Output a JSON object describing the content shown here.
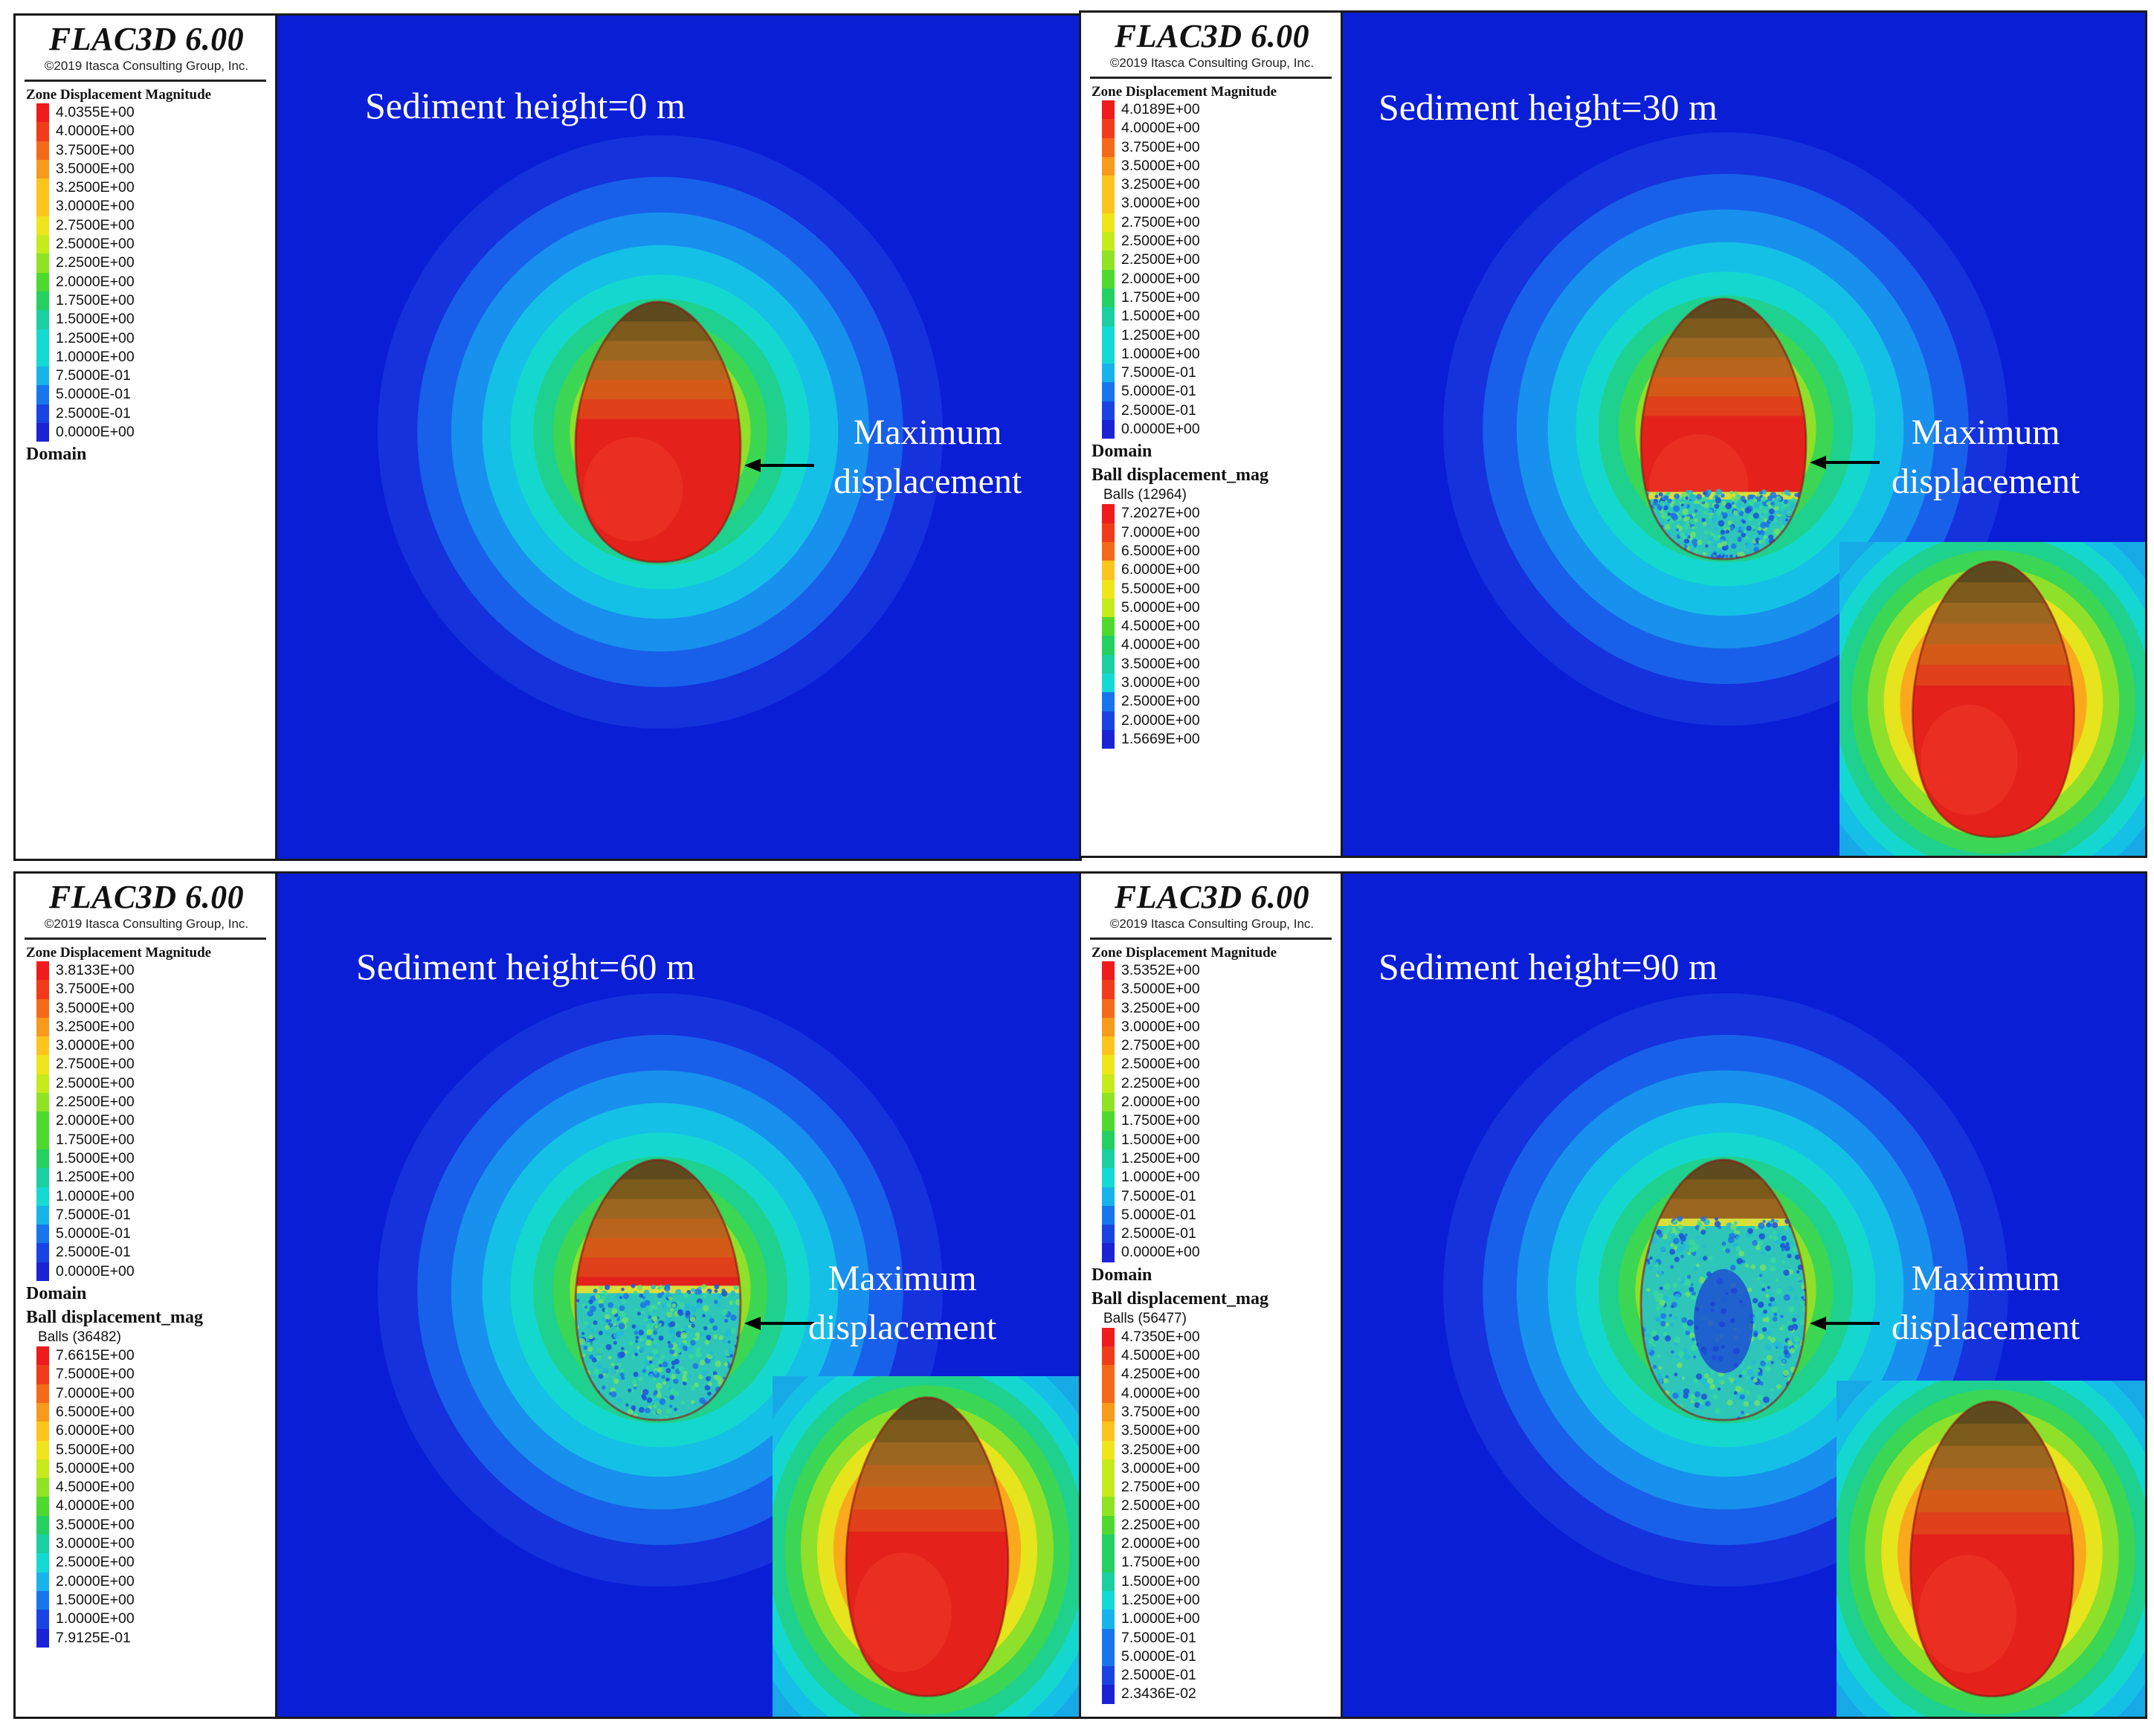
{
  "app_title": "FLAC3D 6.00",
  "copyright": "©2019 Itasca Consulting Group, Inc.",
  "zone_heading": "Zone Displacement Magnitude",
  "domain_label": "Domain",
  "ball_heading": "Ball displacement_mag",
  "annotation_line1": "Maximum",
  "annotation_line2": "displacement",
  "colors": {
    "background_blue": "#0a1ed6",
    "scale": [
      "#ee1c1c",
      "#f03c1a",
      "#f56a1a",
      "#f89a1b",
      "#fbc51e",
      "#f0e41c",
      "#c6ea1c",
      "#8fe323",
      "#4fd92f",
      "#25d063",
      "#1ccfa0",
      "#16d9d4",
      "#17b4ec",
      "#1876ed",
      "#1a44e2",
      "#1b23d4"
    ]
  },
  "panels": [
    {
      "label": "Sediment height=0 m",
      "zone_values": [
        "4.0355E+00",
        "4.0000E+00",
        "3.7500E+00",
        "3.5000E+00",
        "3.2500E+00",
        "3.0000E+00",
        "2.7500E+00",
        "2.5000E+00",
        "2.2500E+00",
        "2.0000E+00",
        "1.7500E+00",
        "1.5000E+00",
        "1.2500E+00",
        "1.0000E+00",
        "7.5000E-01",
        "5.0000E-01",
        "2.5000E-01",
        "0.0000E+00"
      ],
      "balls": null,
      "ball_values": [],
      "sediment_fraction": 0
    },
    {
      "label": "Sediment height=30 m",
      "zone_values": [
        "4.0189E+00",
        "4.0000E+00",
        "3.7500E+00",
        "3.5000E+00",
        "3.2500E+00",
        "3.0000E+00",
        "2.7500E+00",
        "2.5000E+00",
        "2.2500E+00",
        "2.0000E+00",
        "1.7500E+00",
        "1.5000E+00",
        "1.2500E+00",
        "1.0000E+00",
        "7.5000E-01",
        "5.0000E-01",
        "2.5000E-01",
        "0.0000E+00"
      ],
      "balls": "Balls (12964)",
      "ball_values": [
        "7.2027E+00",
        "7.0000E+00",
        "6.5000E+00",
        "6.0000E+00",
        "5.5000E+00",
        "5.0000E+00",
        "4.5000E+00",
        "4.0000E+00",
        "3.5000E+00",
        "3.0000E+00",
        "2.5000E+00",
        "2.0000E+00",
        "1.5669E+00"
      ],
      "sediment_fraction": 0.3
    },
    {
      "label": "Sediment height=60 m",
      "zone_values": [
        "3.8133E+00",
        "3.7500E+00",
        "3.5000E+00",
        "3.2500E+00",
        "3.0000E+00",
        "2.7500E+00",
        "2.5000E+00",
        "2.2500E+00",
        "2.0000E+00",
        "1.7500E+00",
        "1.5000E+00",
        "1.2500E+00",
        "1.0000E+00",
        "7.5000E-01",
        "5.0000E-01",
        "2.5000E-01",
        "0.0000E+00"
      ],
      "balls": "Balls (36482)",
      "ball_values": [
        "7.6615E+00",
        "7.5000E+00",
        "7.0000E+00",
        "6.5000E+00",
        "6.0000E+00",
        "5.5000E+00",
        "5.0000E+00",
        "4.5000E+00",
        "4.0000E+00",
        "3.5000E+00",
        "3.0000E+00",
        "2.5000E+00",
        "2.0000E+00",
        "1.5000E+00",
        "1.0000E+00",
        "7.9125E-01"
      ],
      "sediment_fraction": 0.6
    },
    {
      "label": "Sediment height=90 m",
      "zone_values": [
        "3.5352E+00",
        "3.5000E+00",
        "3.2500E+00",
        "3.0000E+00",
        "2.7500E+00",
        "2.5000E+00",
        "2.2500E+00",
        "2.0000E+00",
        "1.7500E+00",
        "1.5000E+00",
        "1.2500E+00",
        "1.0000E+00",
        "7.5000E-01",
        "5.0000E-01",
        "2.5000E-01",
        "0.0000E+00"
      ],
      "balls": "Balls (56477)",
      "ball_values": [
        "4.7350E+00",
        "4.5000E+00",
        "4.2500E+00",
        "4.0000E+00",
        "3.7500E+00",
        "3.5000E+00",
        "3.2500E+00",
        "3.0000E+00",
        "2.7500E+00",
        "2.5000E+00",
        "2.2500E+00",
        "2.0000E+00",
        "1.7500E+00",
        "1.5000E+00",
        "1.2500E+00",
        "1.0000E+00",
        "7.5000E-01",
        "5.0000E-01",
        "2.5000E-01",
        "2.3436E-02"
      ],
      "sediment_fraction": 0.9
    }
  ]
}
